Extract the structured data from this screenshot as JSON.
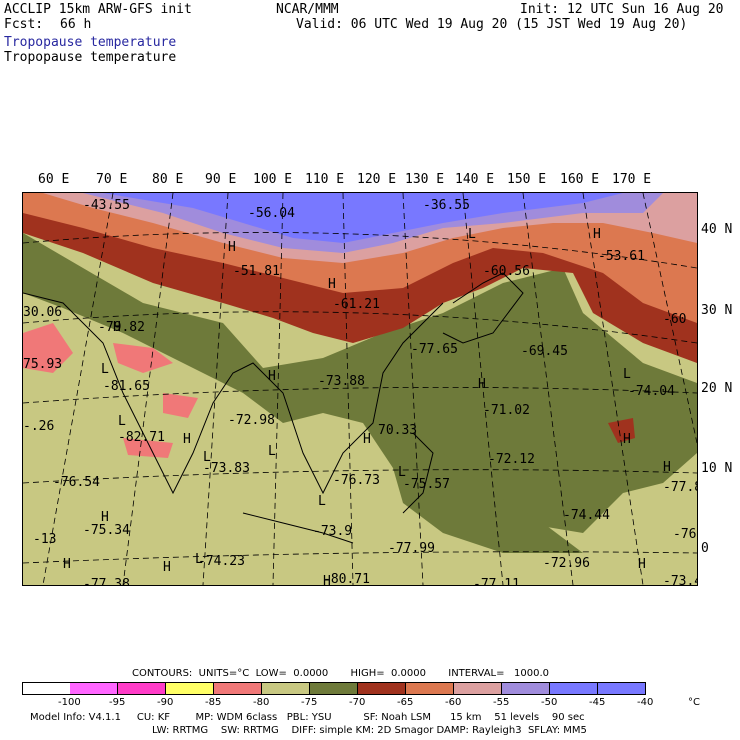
{
  "header": {
    "model": "ACCLIP 15km ARW-GFS init",
    "center": "NCAR/MMM",
    "init": "Init: 12 UTC Sun 16 Aug 20",
    "fcst_label": "Fcst:",
    "fcst_value": "66 h",
    "valid": "Valid: 06 UTC Wed 19 Aug 20 (15 JST Wed 19 Aug 20)",
    "field_title_1": "Tropopause temperature",
    "field_title_2": "Tropopause temperature"
  },
  "map": {
    "lon_labels": [
      "60 E",
      "70 E",
      "80 E",
      "90 E",
      "100 E",
      "110 E",
      "120 E",
      "130 E",
      "140 E",
      "150 E",
      "160 E",
      "170 E"
    ],
    "lat_labels": [
      "40 N",
      "30 N",
      "20 N",
      "10 N",
      "0"
    ],
    "highs": [
      "H",
      "H",
      "H",
      "H",
      "H",
      "H",
      "H",
      "H",
      "H",
      "H",
      "H",
      "H",
      "H",
      "H",
      "H"
    ],
    "lows": [
      "L",
      "L",
      "L",
      "L",
      "L",
      "L",
      "L",
      "L",
      "L"
    ],
    "values": [
      "-43.55",
      "-56.04",
      "-36.55",
      "-51.81",
      "-53.61",
      "-60.56",
      "-61.21",
      "30.06",
      "-79.82",
      "-60",
      "-77.65",
      "-69.45",
      "75.93",
      "-81.65",
      "-73.88",
      "-74.04",
      "-72.98",
      "-71.02",
      "-.26",
      "-82.71",
      "70.33",
      "-72.12",
      "-73.83",
      "-76.73",
      "-75.57",
      "-77.8",
      "-76.54",
      "-75.34",
      "-73.9",
      "-74.44",
      "-76",
      "-13",
      "-74.23",
      "-77.99",
      "-72.96",
      "-77.38",
      "-80.71",
      "-77.11",
      "-73.4"
    ]
  },
  "legend": {
    "contours": "CONTOURS:  UNITS=°C  LOW=  0.0000       HIGH=  0.0000       INTERVAL=   1000.0",
    "ticks": [
      "-100",
      "-95",
      "-90",
      "-85",
      "-80",
      "-75",
      "-70",
      "-65",
      "-60",
      "-55",
      "-50",
      "-45",
      "-40",
      "°C"
    ],
    "colors": [
      "#ffffff",
      "#ff66ff",
      "#ff3cc8",
      "#ffff66",
      "#f07878",
      "#c8c882",
      "#6e7a3a",
      "#a0321e",
      "#dc7850",
      "#dca0a0",
      "#a08cdc",
      "#7878ff",
      "#7878ff"
    ]
  },
  "footer": {
    "line1": "Model Info: V4.1.1     CU: KF        MP: WDM 6class   PBL: YSU          SF: Noah LSM      15 km    51 levels    90 sec",
    "line2": "LW: RRTMG    SW: RRTMG    DIFF: simple KM: 2D Smagor DAMP: Rayleigh3  SFLAY: MM5"
  }
}
